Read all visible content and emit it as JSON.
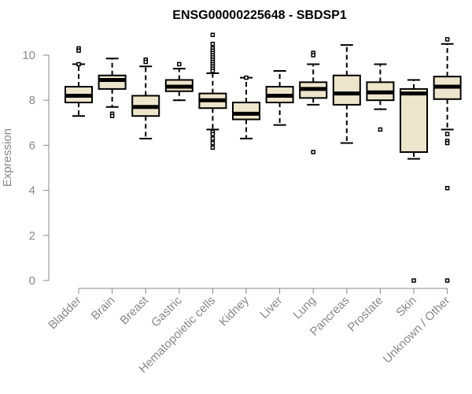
{
  "chart_data": {
    "type": "boxplot",
    "title": "ENSG00000225648 - SBDSP1",
    "ylabel": "Expression",
    "xlabel": "",
    "ylim": [
      0,
      10.9
    ],
    "yticks": [
      0,
      2,
      4,
      6,
      8,
      10
    ],
    "box_fill": "#ede6cc",
    "box_stroke": "#000000",
    "axis_color": "#888888",
    "categories": [
      "Bladder",
      "Brain",
      "Breast",
      "Gastric",
      "Hematopoietic cells",
      "Kidney",
      "Liver",
      "Lung",
      "Pancreas",
      "Prostate",
      "Skin",
      "Unknown / Other"
    ],
    "boxes": [
      {
        "category": "Bladder",
        "q1": 7.9,
        "median": 8.2,
        "q3": 8.6,
        "whisker_low": 7.3,
        "whisker_high": 9.6,
        "outliers": [
          10.3,
          10.2,
          9.6
        ]
      },
      {
        "category": "Brain",
        "q1": 8.5,
        "median": 8.9,
        "q3": 9.1,
        "whisker_low": 7.7,
        "whisker_high": 9.85,
        "outliers": [
          7.4,
          7.3
        ]
      },
      {
        "category": "Breast",
        "q1": 7.3,
        "median": 7.7,
        "q3": 8.2,
        "whisker_low": 6.3,
        "whisker_high": 9.5,
        "outliers": [
          9.8,
          9.7
        ]
      },
      {
        "category": "Gastric",
        "q1": 8.4,
        "median": 8.6,
        "q3": 8.9,
        "whisker_low": 8.0,
        "whisker_high": 9.4,
        "outliers": [
          9.6
        ]
      },
      {
        "category": "Hematopoietic cells",
        "q1": 7.65,
        "median": 8.0,
        "q3": 8.3,
        "whisker_low": 6.7,
        "whisker_high": 9.2,
        "outliers": [
          10.9,
          10.5,
          10.3,
          10.2,
          10.1,
          10.0,
          9.9,
          9.8,
          9.7,
          9.6,
          9.5,
          9.4,
          9.3,
          6.6,
          6.5,
          6.3,
          6.1,
          5.9
        ]
      },
      {
        "category": "Kidney",
        "q1": 7.15,
        "median": 7.4,
        "q3": 7.9,
        "whisker_low": 6.3,
        "whisker_high": 9.0,
        "outliers": [
          9.0
        ]
      },
      {
        "category": "Liver",
        "q1": 7.9,
        "median": 8.2,
        "q3": 8.6,
        "whisker_low": 6.9,
        "whisker_high": 9.3,
        "outliers": []
      },
      {
        "category": "Lung",
        "q1": 8.1,
        "median": 8.5,
        "q3": 8.8,
        "whisker_low": 7.8,
        "whisker_high": 9.6,
        "outliers": [
          10.1,
          10.0,
          5.7
        ]
      },
      {
        "category": "Pancreas",
        "q1": 7.8,
        "median": 8.3,
        "q3": 9.1,
        "whisker_low": 6.1,
        "whisker_high": 10.45,
        "outliers": []
      },
      {
        "category": "Prostate",
        "q1": 8.0,
        "median": 8.35,
        "q3": 8.8,
        "whisker_low": 7.6,
        "whisker_high": 9.6,
        "outliers": [
          6.7
        ]
      },
      {
        "category": "Skin",
        "q1": 5.7,
        "median": 8.3,
        "q3": 8.5,
        "whisker_low": 5.4,
        "whisker_high": 8.9,
        "outliers": [
          0.0
        ]
      },
      {
        "category": "Unknown / Other",
        "q1": 8.05,
        "median": 8.6,
        "q3": 9.05,
        "whisker_low": 6.7,
        "whisker_high": 10.5,
        "outliers": [
          10.7,
          6.5,
          6.2,
          6.1,
          4.1,
          0.0
        ]
      }
    ]
  }
}
